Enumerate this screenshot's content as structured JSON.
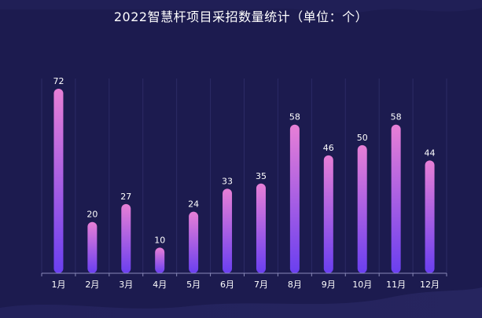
{
  "colors": {
    "background": "#1c1b4f",
    "bar_top": "#e77fd6",
    "bar_bottom": "#6a3ff0",
    "text": "#ffffff",
    "axis": "#8a8ab8"
  },
  "chart_data": {
    "type": "bar",
    "title": "2022智慧杆项目采招数量统计（单位：个）",
    "categories": [
      "1月",
      "2月",
      "3月",
      "4月",
      "5月",
      "6月",
      "7月",
      "8月",
      "9月",
      "10月",
      "11月",
      "12月"
    ],
    "values": [
      72,
      20,
      27,
      10,
      24,
      33,
      35,
      58,
      46,
      50,
      58,
      44
    ],
    "ylim": [
      0,
      76
    ],
    "xlabel": "",
    "ylabel": "",
    "grid": "vertical"
  }
}
